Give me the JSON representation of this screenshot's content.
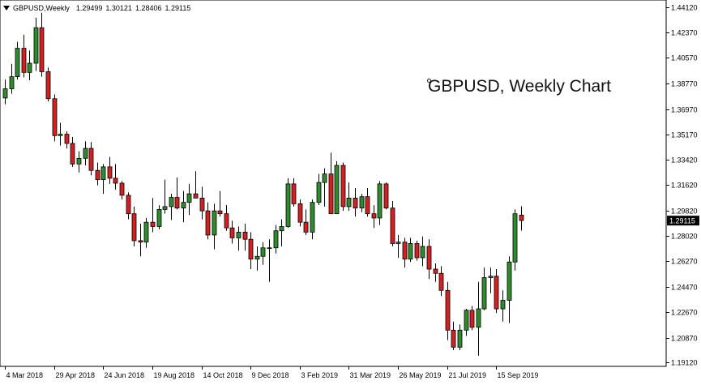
{
  "header": {
    "symbol": "GBPUSD,Weekly",
    "open": "1.29499",
    "high": "1.30121",
    "low": "1.28406",
    "close": "1.29115"
  },
  "watermark": "GBPUSD, Weekly Chart",
  "colors": {
    "bull": "#2e8b2e",
    "bear": "#d42020",
    "wick": "#000000",
    "axis": "#000000",
    "background": "#ffffff",
    "price_label_bg": "#000000",
    "price_label_fg": "#ffffff"
  },
  "chart_data": {
    "type": "candlestick",
    "title": "GBPUSD, Weekly Chart",
    "ylim": [
      1.1885,
      1.4465
    ],
    "y_ticks": [
      "1.44120",
      "1.42370",
      "1.40570",
      "1.38770",
      "1.36970",
      "1.35170",
      "1.33420",
      "1.31620",
      "1.29820",
      "1.28020",
      "1.26270",
      "1.24470",
      "1.22670",
      "1.20870",
      "1.19120"
    ],
    "x_labels": [
      "4 Mar 2018",
      "29 Apr 2018",
      "24 Jun 2018",
      "19 Aug 2018",
      "14 Oct 2018",
      "9 Dec 2018",
      "3 Feb 2019",
      "31 Mar 2019",
      "26 May 2019",
      "21 Jul 2019",
      "15 Sep 2019"
    ],
    "x_label_bar_index": [
      0,
      8,
      16,
      24,
      32,
      40,
      48,
      56,
      64,
      72,
      80
    ],
    "current_price": "1.29115",
    "candles": [
      {
        "o": 1.3775,
        "h": 1.3905,
        "l": 1.373,
        "c": 1.384
      },
      {
        "o": 1.384,
        "h": 1.4015,
        "l": 1.3805,
        "c": 1.3925
      },
      {
        "o": 1.3925,
        "h": 1.417,
        "l": 1.3905,
        "c": 1.4125
      },
      {
        "o": 1.4125,
        "h": 1.422,
        "l": 1.392,
        "c": 1.3955
      },
      {
        "o": 1.3955,
        "h": 1.411,
        "l": 1.39,
        "c": 1.402
      },
      {
        "o": 1.402,
        "h": 1.434,
        "l": 1.3965,
        "c": 1.427
      },
      {
        "o": 1.427,
        "h": 1.4375,
        "l": 1.3925,
        "c": 1.396
      },
      {
        "o": 1.396,
        "h": 1.399,
        "l": 1.375,
        "c": 1.377
      },
      {
        "o": 1.377,
        "h": 1.38,
        "l": 1.347,
        "c": 1.351
      },
      {
        "o": 1.351,
        "h": 1.36,
        "l": 1.344,
        "c": 1.352
      },
      {
        "o": 1.352,
        "h": 1.354,
        "l": 1.342,
        "c": 1.3455
      },
      {
        "o": 1.3455,
        "h": 1.35,
        "l": 1.329,
        "c": 1.331
      },
      {
        "o": 1.331,
        "h": 1.34,
        "l": 1.325,
        "c": 1.335
      },
      {
        "o": 1.335,
        "h": 1.347,
        "l": 1.33,
        "c": 1.342
      },
      {
        "o": 1.342,
        "h": 1.3465,
        "l": 1.323,
        "c": 1.3265
      },
      {
        "o": 1.3265,
        "h": 1.332,
        "l": 1.316,
        "c": 1.32
      },
      {
        "o": 1.32,
        "h": 1.331,
        "l": 1.31,
        "c": 1.329
      },
      {
        "o": 1.329,
        "h": 1.336,
        "l": 1.317,
        "c": 1.321
      },
      {
        "o": 1.321,
        "h": 1.331,
        "l": 1.313,
        "c": 1.3175
      },
      {
        "o": 1.3175,
        "h": 1.319,
        "l": 1.306,
        "c": 1.309
      },
      {
        "o": 1.309,
        "h": 1.311,
        "l": 1.292,
        "c": 1.296
      },
      {
        "o": 1.296,
        "h": 1.301,
        "l": 1.273,
        "c": 1.277
      },
      {
        "o": 1.277,
        "h": 1.289,
        "l": 1.266,
        "c": 1.276
      },
      {
        "o": 1.276,
        "h": 1.293,
        "l": 1.272,
        "c": 1.29
      },
      {
        "o": 1.29,
        "h": 1.307,
        "l": 1.283,
        "c": 1.287
      },
      {
        "o": 1.287,
        "h": 1.302,
        "l": 1.285,
        "c": 1.299
      },
      {
        "o": 1.299,
        "h": 1.32,
        "l": 1.296,
        "c": 1.301
      },
      {
        "o": 1.301,
        "h": 1.31,
        "l": 1.2915,
        "c": 1.3075
      },
      {
        "o": 1.3075,
        "h": 1.3215,
        "l": 1.299,
        "c": 1.3
      },
      {
        "o": 1.3,
        "h": 1.312,
        "l": 1.29,
        "c": 1.304
      },
      {
        "o": 1.304,
        "h": 1.317,
        "l": 1.295,
        "c": 1.31
      },
      {
        "o": 1.31,
        "h": 1.326,
        "l": 1.307,
        "c": 1.307
      },
      {
        "o": 1.307,
        "h": 1.315,
        "l": 1.292,
        "c": 1.298
      },
      {
        "o": 1.298,
        "h": 1.304,
        "l": 1.278,
        "c": 1.281
      },
      {
        "o": 1.281,
        "h": 1.303,
        "l": 1.271,
        "c": 1.298
      },
      {
        "o": 1.298,
        "h": 1.312,
        "l": 1.294,
        "c": 1.296
      },
      {
        "o": 1.296,
        "h": 1.302,
        "l": 1.284,
        "c": 1.286
      },
      {
        "o": 1.286,
        "h": 1.291,
        "l": 1.275,
        "c": 1.279
      },
      {
        "o": 1.279,
        "h": 1.287,
        "l": 1.27,
        "c": 1.283
      },
      {
        "o": 1.283,
        "h": 1.289,
        "l": 1.27,
        "c": 1.278
      },
      {
        "o": 1.278,
        "h": 1.283,
        "l": 1.257,
        "c": 1.264
      },
      {
        "o": 1.264,
        "h": 1.273,
        "l": 1.256,
        "c": 1.266
      },
      {
        "o": 1.266,
        "h": 1.276,
        "l": 1.26,
        "c": 1.272
      },
      {
        "o": 1.272,
        "h": 1.278,
        "l": 1.248,
        "c": 1.272
      },
      {
        "o": 1.272,
        "h": 1.288,
        "l": 1.268,
        "c": 1.284
      },
      {
        "o": 1.284,
        "h": 1.292,
        "l": 1.273,
        "c": 1.287
      },
      {
        "o": 1.287,
        "h": 1.321,
        "l": 1.286,
        "c": 1.317
      },
      {
        "o": 1.317,
        "h": 1.321,
        "l": 1.301,
        "c": 1.303
      },
      {
        "o": 1.303,
        "h": 1.306,
        "l": 1.287,
        "c": 1.29
      },
      {
        "o": 1.29,
        "h": 1.299,
        "l": 1.281,
        "c": 1.283
      },
      {
        "o": 1.283,
        "h": 1.306,
        "l": 1.278,
        "c": 1.304
      },
      {
        "o": 1.304,
        "h": 1.324,
        "l": 1.302,
        "c": 1.318
      },
      {
        "o": 1.318,
        "h": 1.328,
        "l": 1.301,
        "c": 1.324
      },
      {
        "o": 1.324,
        "h": 1.339,
        "l": 1.296,
        "c": 1.296
      },
      {
        "o": 1.296,
        "h": 1.333,
        "l": 1.296,
        "c": 1.33
      },
      {
        "o": 1.33,
        "h": 1.332,
        "l": 1.298,
        "c": 1.301
      },
      {
        "o": 1.301,
        "h": 1.318,
        "l": 1.298,
        "c": 1.307
      },
      {
        "o": 1.307,
        "h": 1.314,
        "l": 1.294,
        "c": 1.3
      },
      {
        "o": 1.3,
        "h": 1.31,
        "l": 1.297,
        "c": 1.308
      },
      {
        "o": 1.308,
        "h": 1.314,
        "l": 1.294,
        "c": 1.296
      },
      {
        "o": 1.296,
        "h": 1.302,
        "l": 1.286,
        "c": 1.293
      },
      {
        "o": 1.293,
        "h": 1.319,
        "l": 1.288,
        "c": 1.317
      },
      {
        "o": 1.317,
        "h": 1.318,
        "l": 1.299,
        "c": 1.3
      },
      {
        "o": 1.3,
        "h": 1.305,
        "l": 1.273,
        "c": 1.275
      },
      {
        "o": 1.275,
        "h": 1.281,
        "l": 1.265,
        "c": 1.276
      },
      {
        "o": 1.276,
        "h": 1.279,
        "l": 1.258,
        "c": 1.264
      },
      {
        "o": 1.264,
        "h": 1.279,
        "l": 1.262,
        "c": 1.275
      },
      {
        "o": 1.275,
        "h": 1.277,
        "l": 1.263,
        "c": 1.265
      },
      {
        "o": 1.265,
        "h": 1.28,
        "l": 1.259,
        "c": 1.273
      },
      {
        "o": 1.273,
        "h": 1.278,
        "l": 1.25,
        "c": 1.257
      },
      {
        "o": 1.257,
        "h": 1.261,
        "l": 1.248,
        "c": 1.254
      },
      {
        "o": 1.254,
        "h": 1.259,
        "l": 1.238,
        "c": 1.242
      },
      {
        "o": 1.242,
        "h": 1.248,
        "l": 1.207,
        "c": 1.214
      },
      {
        "o": 1.214,
        "h": 1.22,
        "l": 1.2,
        "c": 1.202
      },
      {
        "o": 1.202,
        "h": 1.218,
        "l": 1.2,
        "c": 1.214
      },
      {
        "o": 1.214,
        "h": 1.229,
        "l": 1.21,
        "c": 1.228
      },
      {
        "o": 1.228,
        "h": 1.231,
        "l": 1.214,
        "c": 1.216
      },
      {
        "o": 1.216,
        "h": 1.248,
        "l": 1.196,
        "c": 1.229
      },
      {
        "o": 1.229,
        "h": 1.258,
        "l": 1.228,
        "c": 1.251
      },
      {
        "o": 1.251,
        "h": 1.258,
        "l": 1.24,
        "c": 1.252
      },
      {
        "o": 1.252,
        "h": 1.257,
        "l": 1.226,
        "c": 1.229
      },
      {
        "o": 1.229,
        "h": 1.242,
        "l": 1.22,
        "c": 1.235
      },
      {
        "o": 1.235,
        "h": 1.266,
        "l": 1.219,
        "c": 1.262
      },
      {
        "o": 1.262,
        "h": 1.299,
        "l": 1.256,
        "c": 1.296
      },
      {
        "o": 1.295,
        "h": 1.3012,
        "l": 1.2841,
        "c": 1.2912
      }
    ]
  }
}
